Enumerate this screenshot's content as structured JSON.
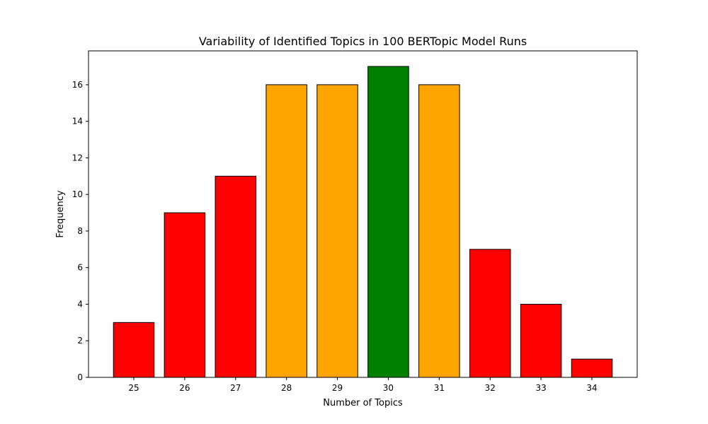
{
  "chart_data": {
    "type": "bar",
    "title": "Variability of Identified Topics in 100 BERTopic Model Runs",
    "xlabel": "Number of Topics",
    "ylabel": "Frequency",
    "categories": [
      "25",
      "26",
      "27",
      "28",
      "29",
      "30",
      "31",
      "32",
      "33",
      "34"
    ],
    "values": [
      3,
      9,
      11,
      16,
      16,
      17,
      16,
      7,
      4,
      1
    ],
    "bar_colors": [
      "#ff0000",
      "#ff0000",
      "#ff0000",
      "#ffa500",
      "#ffa500",
      "#008000",
      "#ffa500",
      "#ff0000",
      "#ff0000",
      "#ff0000"
    ],
    "bar_edge_color": "#000000",
    "ylim": [
      0,
      17.85
    ],
    "yticks": [
      0,
      2,
      4,
      6,
      8,
      10,
      12,
      14,
      16
    ],
    "grid": false,
    "legend": "none"
  }
}
